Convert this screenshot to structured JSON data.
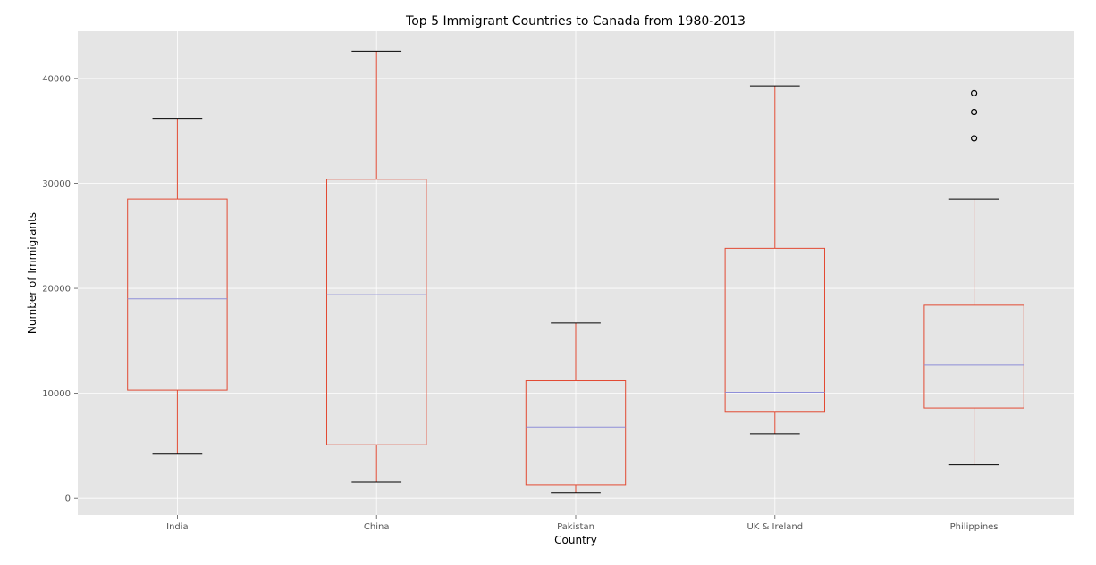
{
  "chart_data": {
    "type": "box",
    "title": "Top 5 Immigrant Countries to Canada from 1980-2013",
    "xlabel": "Country",
    "ylabel": "Number of Immigrants",
    "ylim": [
      -1600,
      44500
    ],
    "yticks": [
      0,
      10000,
      20000,
      30000,
      40000
    ],
    "grid": true,
    "colors": {
      "background": "#e5e5e5",
      "grid": "#ffffff",
      "box": "#e24a33",
      "median": "#8e8ed8",
      "cap": "#000000",
      "tick_text": "#555555"
    },
    "series": [
      {
        "name": "India",
        "whisker_low": 4200,
        "q1": 10300,
        "median": 19000,
        "q3": 28500,
        "whisker_high": 36200,
        "outliers": []
      },
      {
        "name": "China",
        "whisker_low": 1550,
        "q1": 5100,
        "median": 19400,
        "q3": 30400,
        "whisker_high": 42600,
        "outliers": []
      },
      {
        "name": "Pakistan",
        "whisker_low": 550,
        "q1": 1300,
        "median": 6800,
        "q3": 11200,
        "whisker_high": 16700,
        "outliers": []
      },
      {
        "name": "UK & Ireland",
        "whisker_low": 6150,
        "q1": 8200,
        "median": 10100,
        "q3": 23800,
        "whisker_high": 39300,
        "outliers": []
      },
      {
        "name": "Philippines",
        "whisker_low": 3200,
        "q1": 8600,
        "median": 12700,
        "q3": 18400,
        "whisker_high": 28500,
        "outliers": [
          34300,
          36800,
          38600
        ]
      }
    ]
  }
}
